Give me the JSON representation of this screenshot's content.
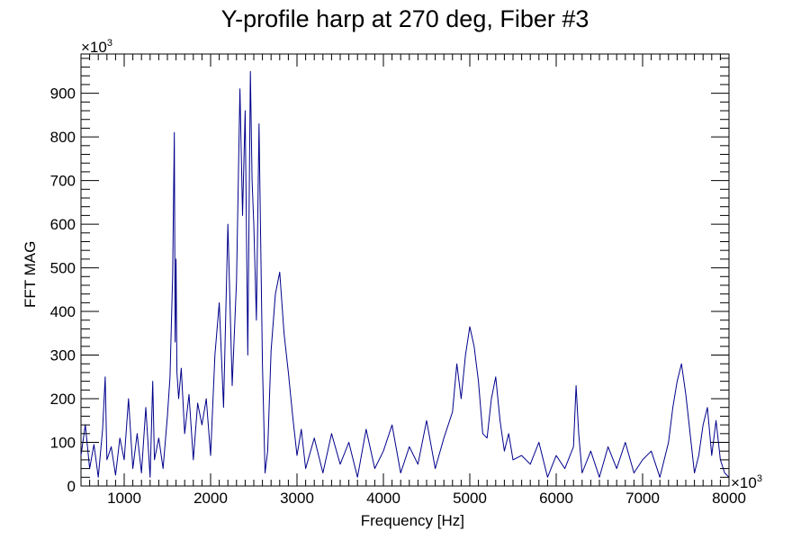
{
  "chart_data": {
    "type": "line",
    "title": "Y-profile harp at 270 deg, Fiber #3",
    "xlabel": "Frequency [Hz]",
    "ylabel": "FFT MAG",
    "x_multiplier": "×10",
    "x_multiplier_exp": "3",
    "y_multiplier": "×10",
    "y_multiplier_exp": "3",
    "xlim": [
      500,
      8000
    ],
    "ylim": [
      0,
      990
    ],
    "xticks": [
      1000,
      2000,
      3000,
      4000,
      5000,
      6000,
      7000,
      8000
    ],
    "xtick_labels": [
      "1000",
      "2000",
      "3000",
      "4000",
      "5000",
      "6000",
      "7000",
      "8000"
    ],
    "yticks": [
      0,
      100,
      200,
      300,
      400,
      500,
      600,
      700,
      800,
      900
    ],
    "ytick_labels": [
      "0",
      "100",
      "200",
      "300",
      "400",
      "500",
      "600",
      "700",
      "800",
      "900"
    ],
    "grid": false,
    "line_color": "#00008b",
    "series": [
      {
        "x": [
          500,
          550,
          600,
          650,
          700,
          750,
          780,
          800,
          850,
          900,
          950,
          1000,
          1050,
          1100,
          1150,
          1200,
          1250,
          1300,
          1330,
          1350,
          1400,
          1450,
          1500,
          1530,
          1560,
          1580,
          1590,
          1600,
          1610,
          1630,
          1660,
          1700,
          1750,
          1800,
          1850,
          1900,
          1950,
          2000,
          2050,
          2100,
          2150,
          2200,
          2250,
          2300,
          2340,
          2370,
          2400,
          2430,
          2460,
          2480,
          2500,
          2530,
          2560,
          2600,
          2630,
          2660,
          2700,
          2750,
          2800,
          2850,
          2900,
          2950,
          3000,
          3050,
          3100,
          3200,
          3300,
          3400,
          3500,
          3600,
          3700,
          3800,
          3900,
          4000,
          4100,
          4200,
          4300,
          4400,
          4500,
          4600,
          4700,
          4800,
          4850,
          4900,
          4950,
          5000,
          5050,
          5100,
          5150,
          5200,
          5250,
          5300,
          5350,
          5400,
          5450,
          5500,
          5600,
          5700,
          5800,
          5900,
          6000,
          6100,
          6200,
          6230,
          6260,
          6300,
          6400,
          6500,
          6600,
          6700,
          6800,
          6900,
          7000,
          7100,
          7200,
          7300,
          7350,
          7400,
          7450,
          7500,
          7550,
          7600,
          7650,
          7700,
          7750,
          7800,
          7850,
          7900,
          7950,
          8000
        ],
        "values": [
          70,
          140,
          40,
          95,
          20,
          130,
          250,
          60,
          90,
          25,
          110,
          60,
          200,
          40,
          120,
          30,
          180,
          20,
          240,
          60,
          110,
          40,
          160,
          250,
          480,
          810,
          330,
          520,
          260,
          200,
          270,
          120,
          210,
          60,
          190,
          140,
          200,
          70,
          300,
          420,
          180,
          600,
          230,
          470,
          910,
          620,
          860,
          300,
          950,
          700,
          600,
          380,
          830,
          280,
          30,
          80,
          310,
          440,
          490,
          350,
          260,
          160,
          70,
          130,
          40,
          110,
          30,
          120,
          50,
          100,
          20,
          130,
          40,
          80,
          140,
          30,
          90,
          50,
          150,
          40,
          110,
          170,
          280,
          200,
          300,
          365,
          320,
          240,
          120,
          110,
          200,
          250,
          150,
          80,
          120,
          60,
          70,
          50,
          100,
          20,
          70,
          40,
          90,
          230,
          120,
          30,
          80,
          20,
          90,
          40,
          100,
          30,
          60,
          80,
          20,
          100,
          180,
          240,
          280,
          210,
          120,
          30,
          70,
          140,
          180,
          70,
          150,
          60,
          30,
          20
        ]
      }
    ]
  }
}
